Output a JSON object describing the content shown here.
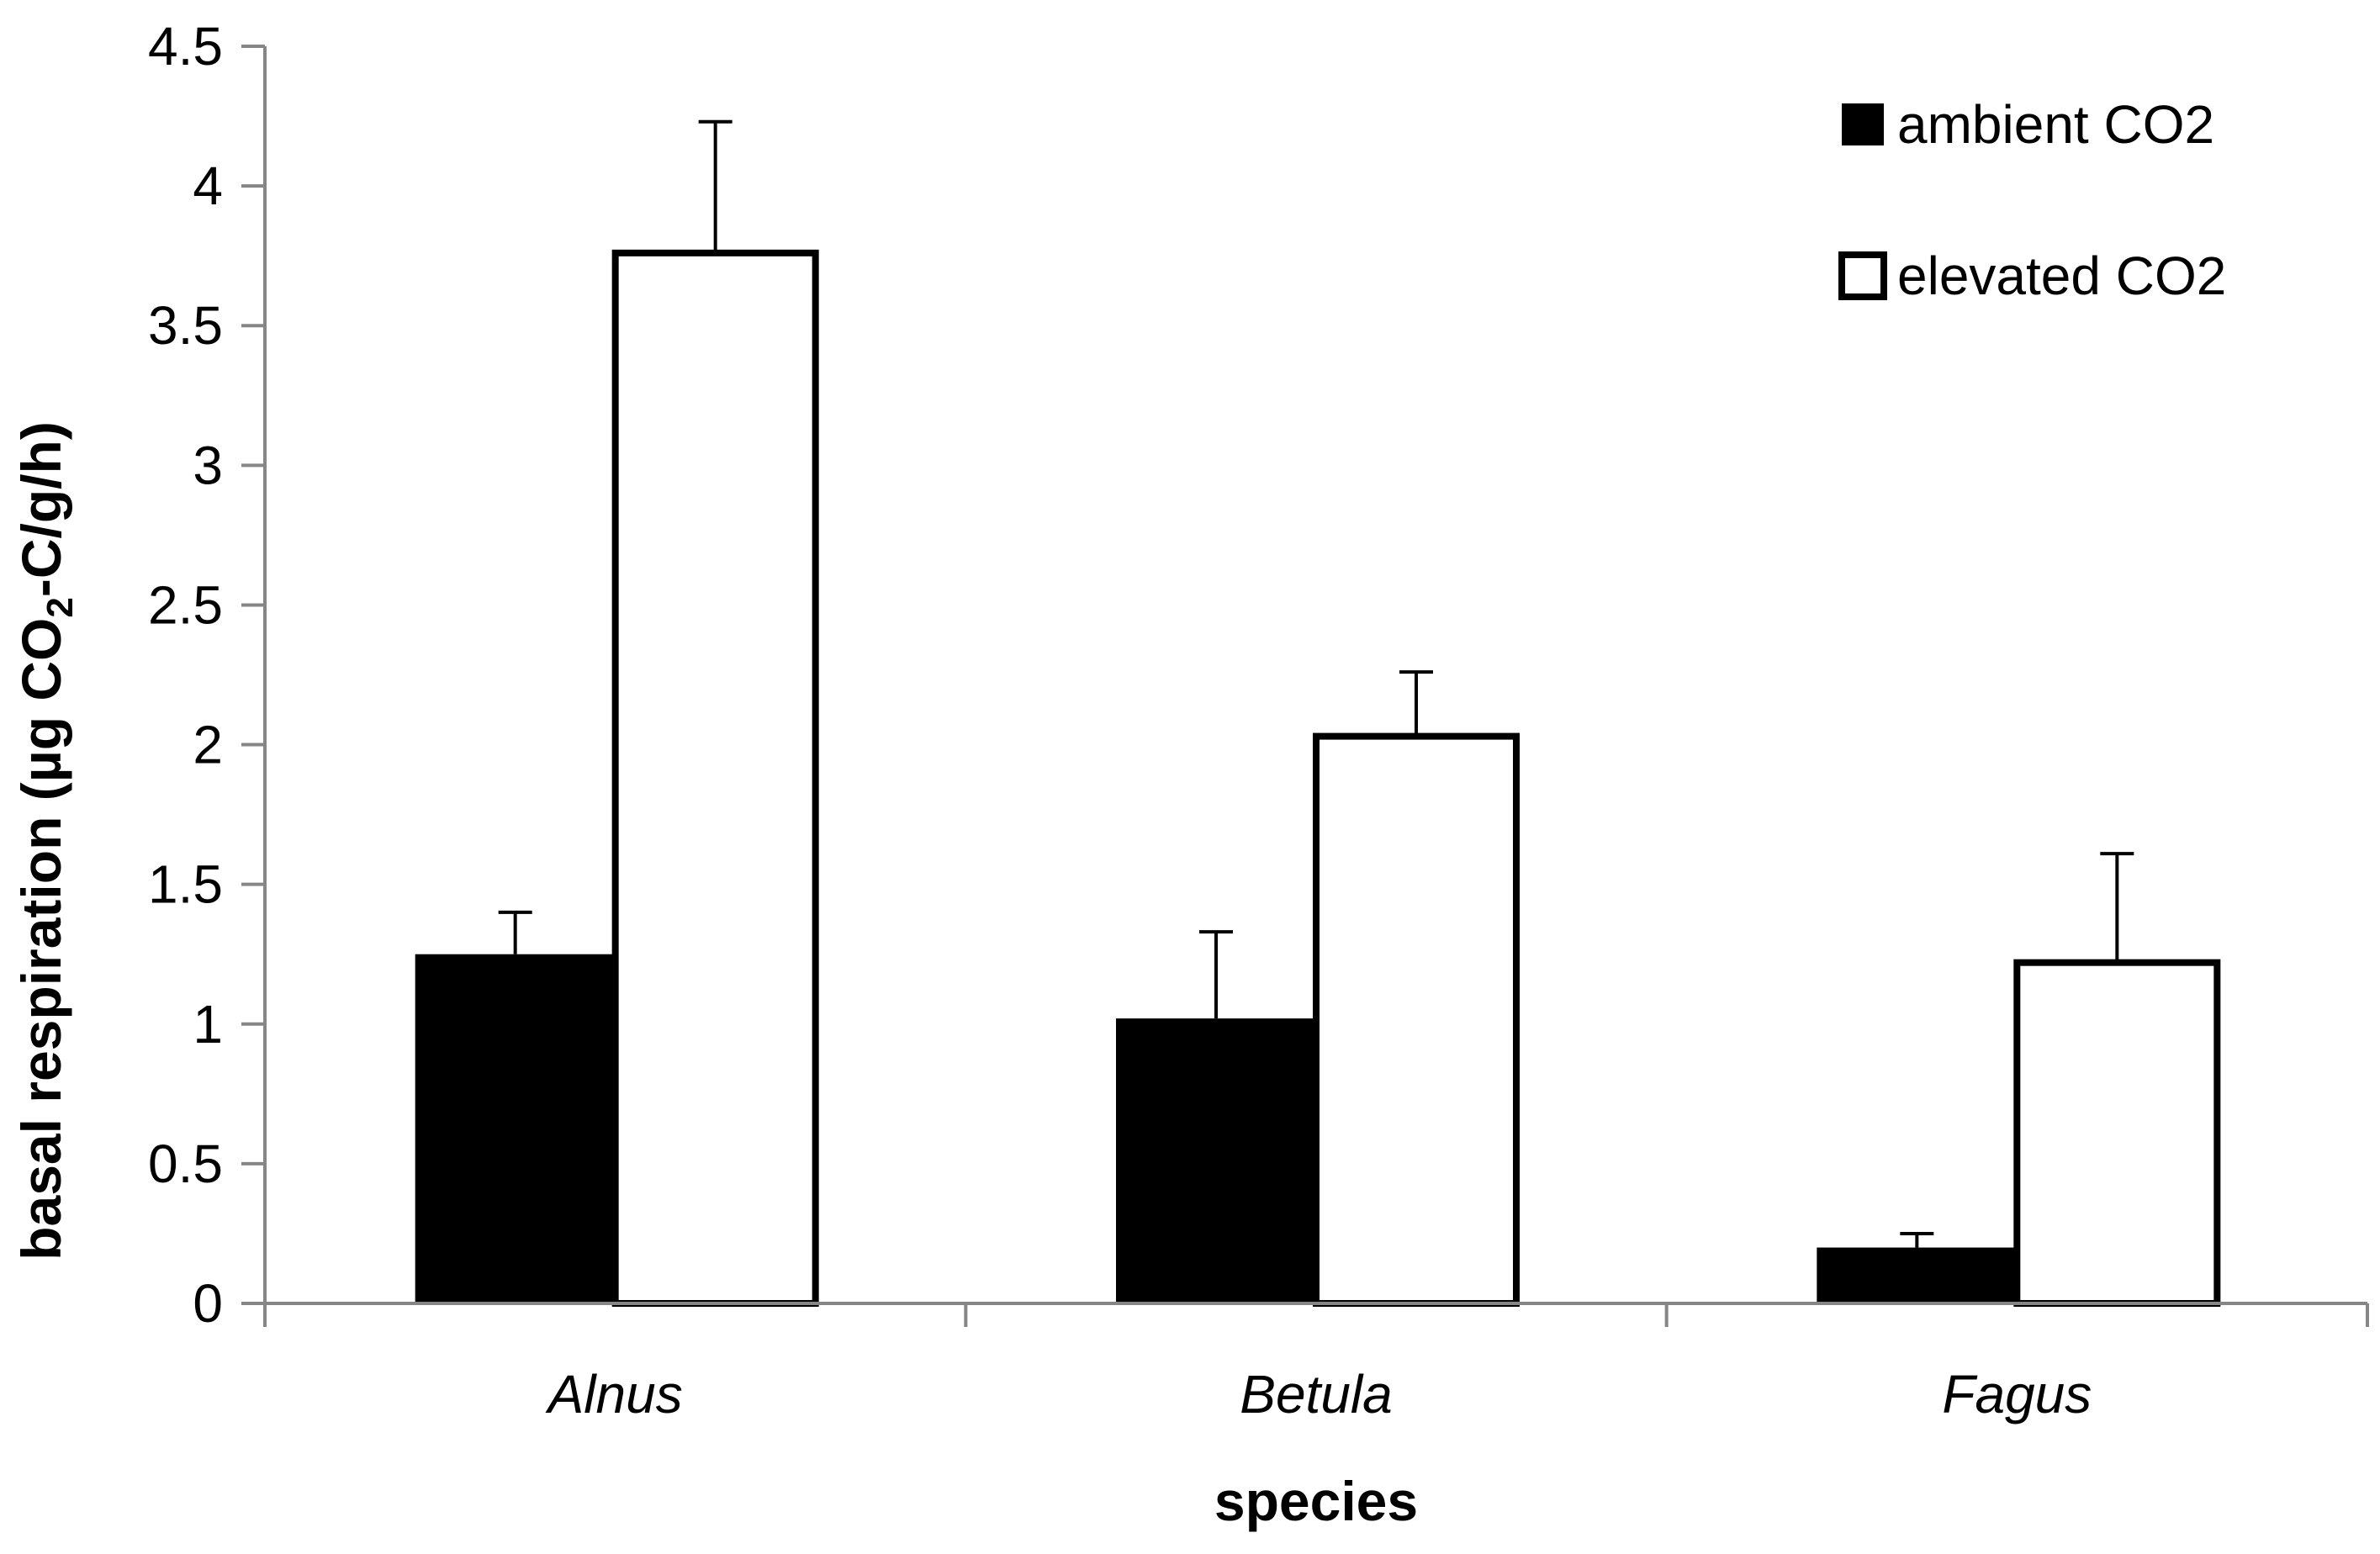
{
  "chart_data": {
    "type": "bar",
    "categories": [
      "Alnus",
      "Betula",
      "Fagus"
    ],
    "series": [
      {
        "name": "ambient CO2",
        "values": [
          1.25,
          1.02,
          0.2
        ],
        "errors": [
          0.15,
          0.31,
          0.05
        ],
        "color": "#000000",
        "stroke": "#000000"
      },
      {
        "name": "elevated CO2",
        "values": [
          3.76,
          2.03,
          1.22
        ],
        "errors": [
          0.47,
          0.23,
          0.39
        ],
        "color": "#ffffff",
        "stroke": "#000000"
      }
    ],
    "title": "",
    "xlabel": "species",
    "ylabel": {
      "prefix": "basal respiration (µg CO",
      "subscript": "2",
      "suffix": "-C/g/h)"
    },
    "ylim": [
      0,
      4.5
    ],
    "yticks": [
      0,
      0.5,
      1,
      1.5,
      2,
      2.5,
      3,
      3.5,
      4,
      4.5
    ],
    "ytick_labels": [
      "0",
      "0.5",
      "1",
      "1.5",
      "2",
      "2.5",
      "3",
      "3.5",
      "4",
      "4.5"
    ],
    "grid": false,
    "legend_position": "top-right",
    "category_label_style": "italic"
  }
}
